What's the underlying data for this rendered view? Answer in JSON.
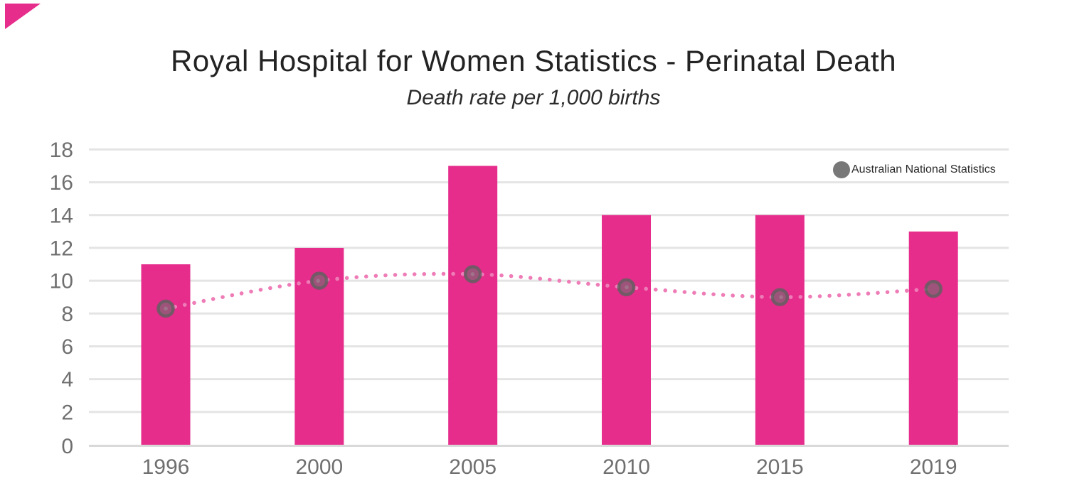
{
  "chart_data": {
    "type": "bar",
    "title": "Royal Hospital for Women Statistics - Perinatal Death",
    "subtitle": "Death rate per 1,000 births",
    "categories": [
      "1996",
      "2000",
      "2005",
      "2010",
      "2015",
      "2019"
    ],
    "series": [
      {
        "id": "royal-hospital-bars",
        "type": "bar",
        "values": [
          11,
          12,
          17,
          14,
          14,
          13
        ]
      },
      {
        "id": "australian-national-dots",
        "type": "dotted-line-with-points",
        "legend_label": "Australian National Statistics",
        "values": [
          8.3,
          10,
          10.4,
          9.6,
          9,
          9.5
        ]
      }
    ],
    "xlabel": "",
    "ylabel": "",
    "ylim": [
      0,
      18
    ],
    "yticks": [
      0,
      2,
      4,
      6,
      8,
      10,
      12,
      14,
      16,
      18
    ],
    "grid": true,
    "legend_position": "top-right"
  },
  "colors": {
    "bar": "#e62d8c",
    "dotted_line": "#ee7cb7",
    "dot_fill": "#6e6e6e",
    "dot_ring": "#5f5f5f",
    "legend_dot": "#787878",
    "gridline": "#e4e4e4",
    "axis_line": "#d9d9d9",
    "tick_label": "#6f6f6f",
    "title_text": "#232323",
    "corner_accent": "#e62d8c"
  }
}
